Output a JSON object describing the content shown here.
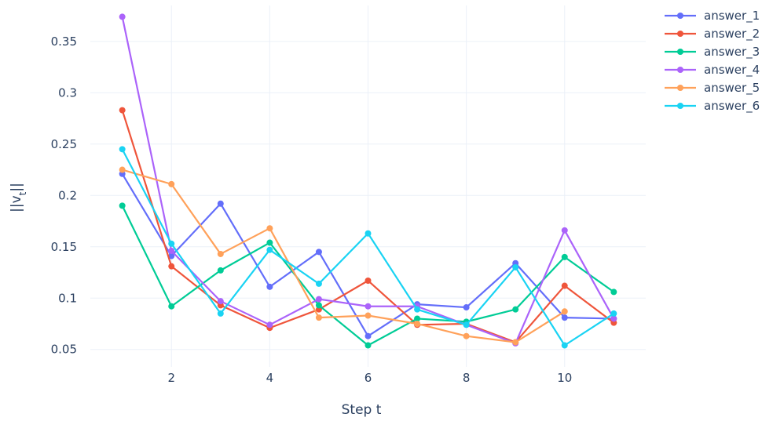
{
  "chart_data": {
    "type": "line",
    "xlabel": "Step t",
    "ylabel": {
      "main": "||v",
      "sub": "t",
      "end": "||"
    },
    "xlim": [
      0.35,
      11.65
    ],
    "ylim": [
      0.033,
      0.385
    ],
    "xticks": [
      2,
      4,
      6,
      8,
      10
    ],
    "xtick_labels": [
      "2",
      "4",
      "6",
      "8",
      "10"
    ],
    "yticks": [
      0.05,
      0.1,
      0.15,
      0.2,
      0.25,
      0.3,
      0.35
    ],
    "ytick_labels": [
      "0.05",
      "0.1",
      "0.15",
      "0.2",
      "0.25",
      "0.3",
      "0.35"
    ],
    "grid": true,
    "legend_position": "top-right",
    "x": [
      1,
      2,
      3,
      4,
      5,
      6,
      7,
      8,
      9,
      10,
      11
    ],
    "series": [
      {
        "name": "answer_1",
        "color": "#636efa",
        "values": [
          0.221,
          0.141,
          0.192,
          0.111,
          0.145,
          0.063,
          0.094,
          0.091,
          0.134,
          0.081,
          0.08
        ]
      },
      {
        "name": "answer_2",
        "color": "#EF553B",
        "values": [
          0.283,
          0.131,
          0.093,
          0.071,
          0.089,
          0.117,
          0.074,
          0.075,
          0.057,
          0.112,
          0.076
        ]
      },
      {
        "name": "answer_3",
        "color": "#00cc96",
        "values": [
          0.19,
          0.092,
          0.127,
          0.154,
          0.093,
          0.054,
          0.08,
          0.077,
          0.089,
          0.14,
          0.106
        ]
      },
      {
        "name": "answer_4",
        "color": "#ab63fa",
        "values": [
          0.374,
          0.146,
          0.097,
          0.074,
          0.099,
          0.092,
          0.092,
          0.074,
          0.056,
          0.166,
          0.08
        ]
      },
      {
        "name": "answer_5",
        "color": "#FFA15A",
        "values": [
          0.225,
          0.211,
          0.143,
          0.168,
          0.081,
          0.083,
          0.075,
          0.063,
          0.057,
          0.087,
          null
        ]
      },
      {
        "name": "answer_6",
        "color": "#19d3f3",
        "values": [
          0.245,
          0.153,
          0.085,
          0.147,
          0.114,
          0.163,
          0.089,
          0.074,
          0.13,
          0.054,
          0.085
        ]
      }
    ]
  }
}
